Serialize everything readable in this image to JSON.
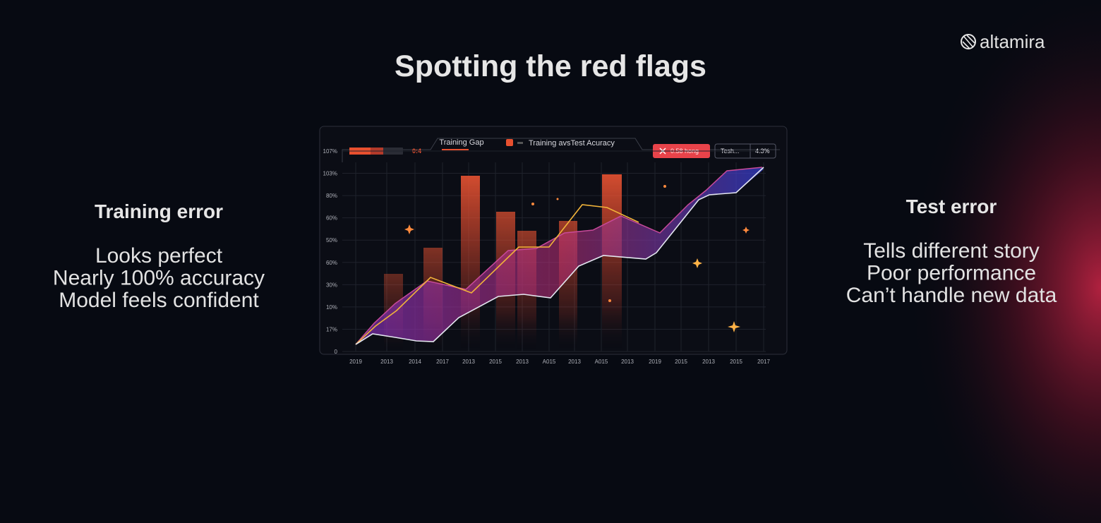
{
  "header": {
    "title": "Spotting the red flags",
    "logo": "altamira"
  },
  "left": {
    "heading": "Training error",
    "lines": [
      "Looks perfect",
      "Nearly 100% accuracy",
      "Model feels confident"
    ]
  },
  "right": {
    "heading": "Test error",
    "lines": [
      "Tells different story",
      "Poor performance",
      "Can’t handle new data"
    ]
  },
  "figure": {
    "legend_left": "0:4",
    "tab": "Training Gap",
    "legend": "Training avsTest Acuracy",
    "alert": "0.58 hong",
    "badge": "Tesh...",
    "badge_value": "4.3%",
    "y_labels": [
      "107%",
      "103%",
      "80%",
      "60%",
      "50%",
      "60%",
      "30%",
      "10%",
      "17%",
      "0"
    ],
    "x_labels": [
      "2019",
      "2013",
      "2014",
      "2017",
      "2013",
      "2015",
      "2013",
      "A015",
      "2013",
      "A015",
      "2013",
      "2019",
      "2015",
      "2013",
      "2015",
      "2017"
    ]
  }
}
